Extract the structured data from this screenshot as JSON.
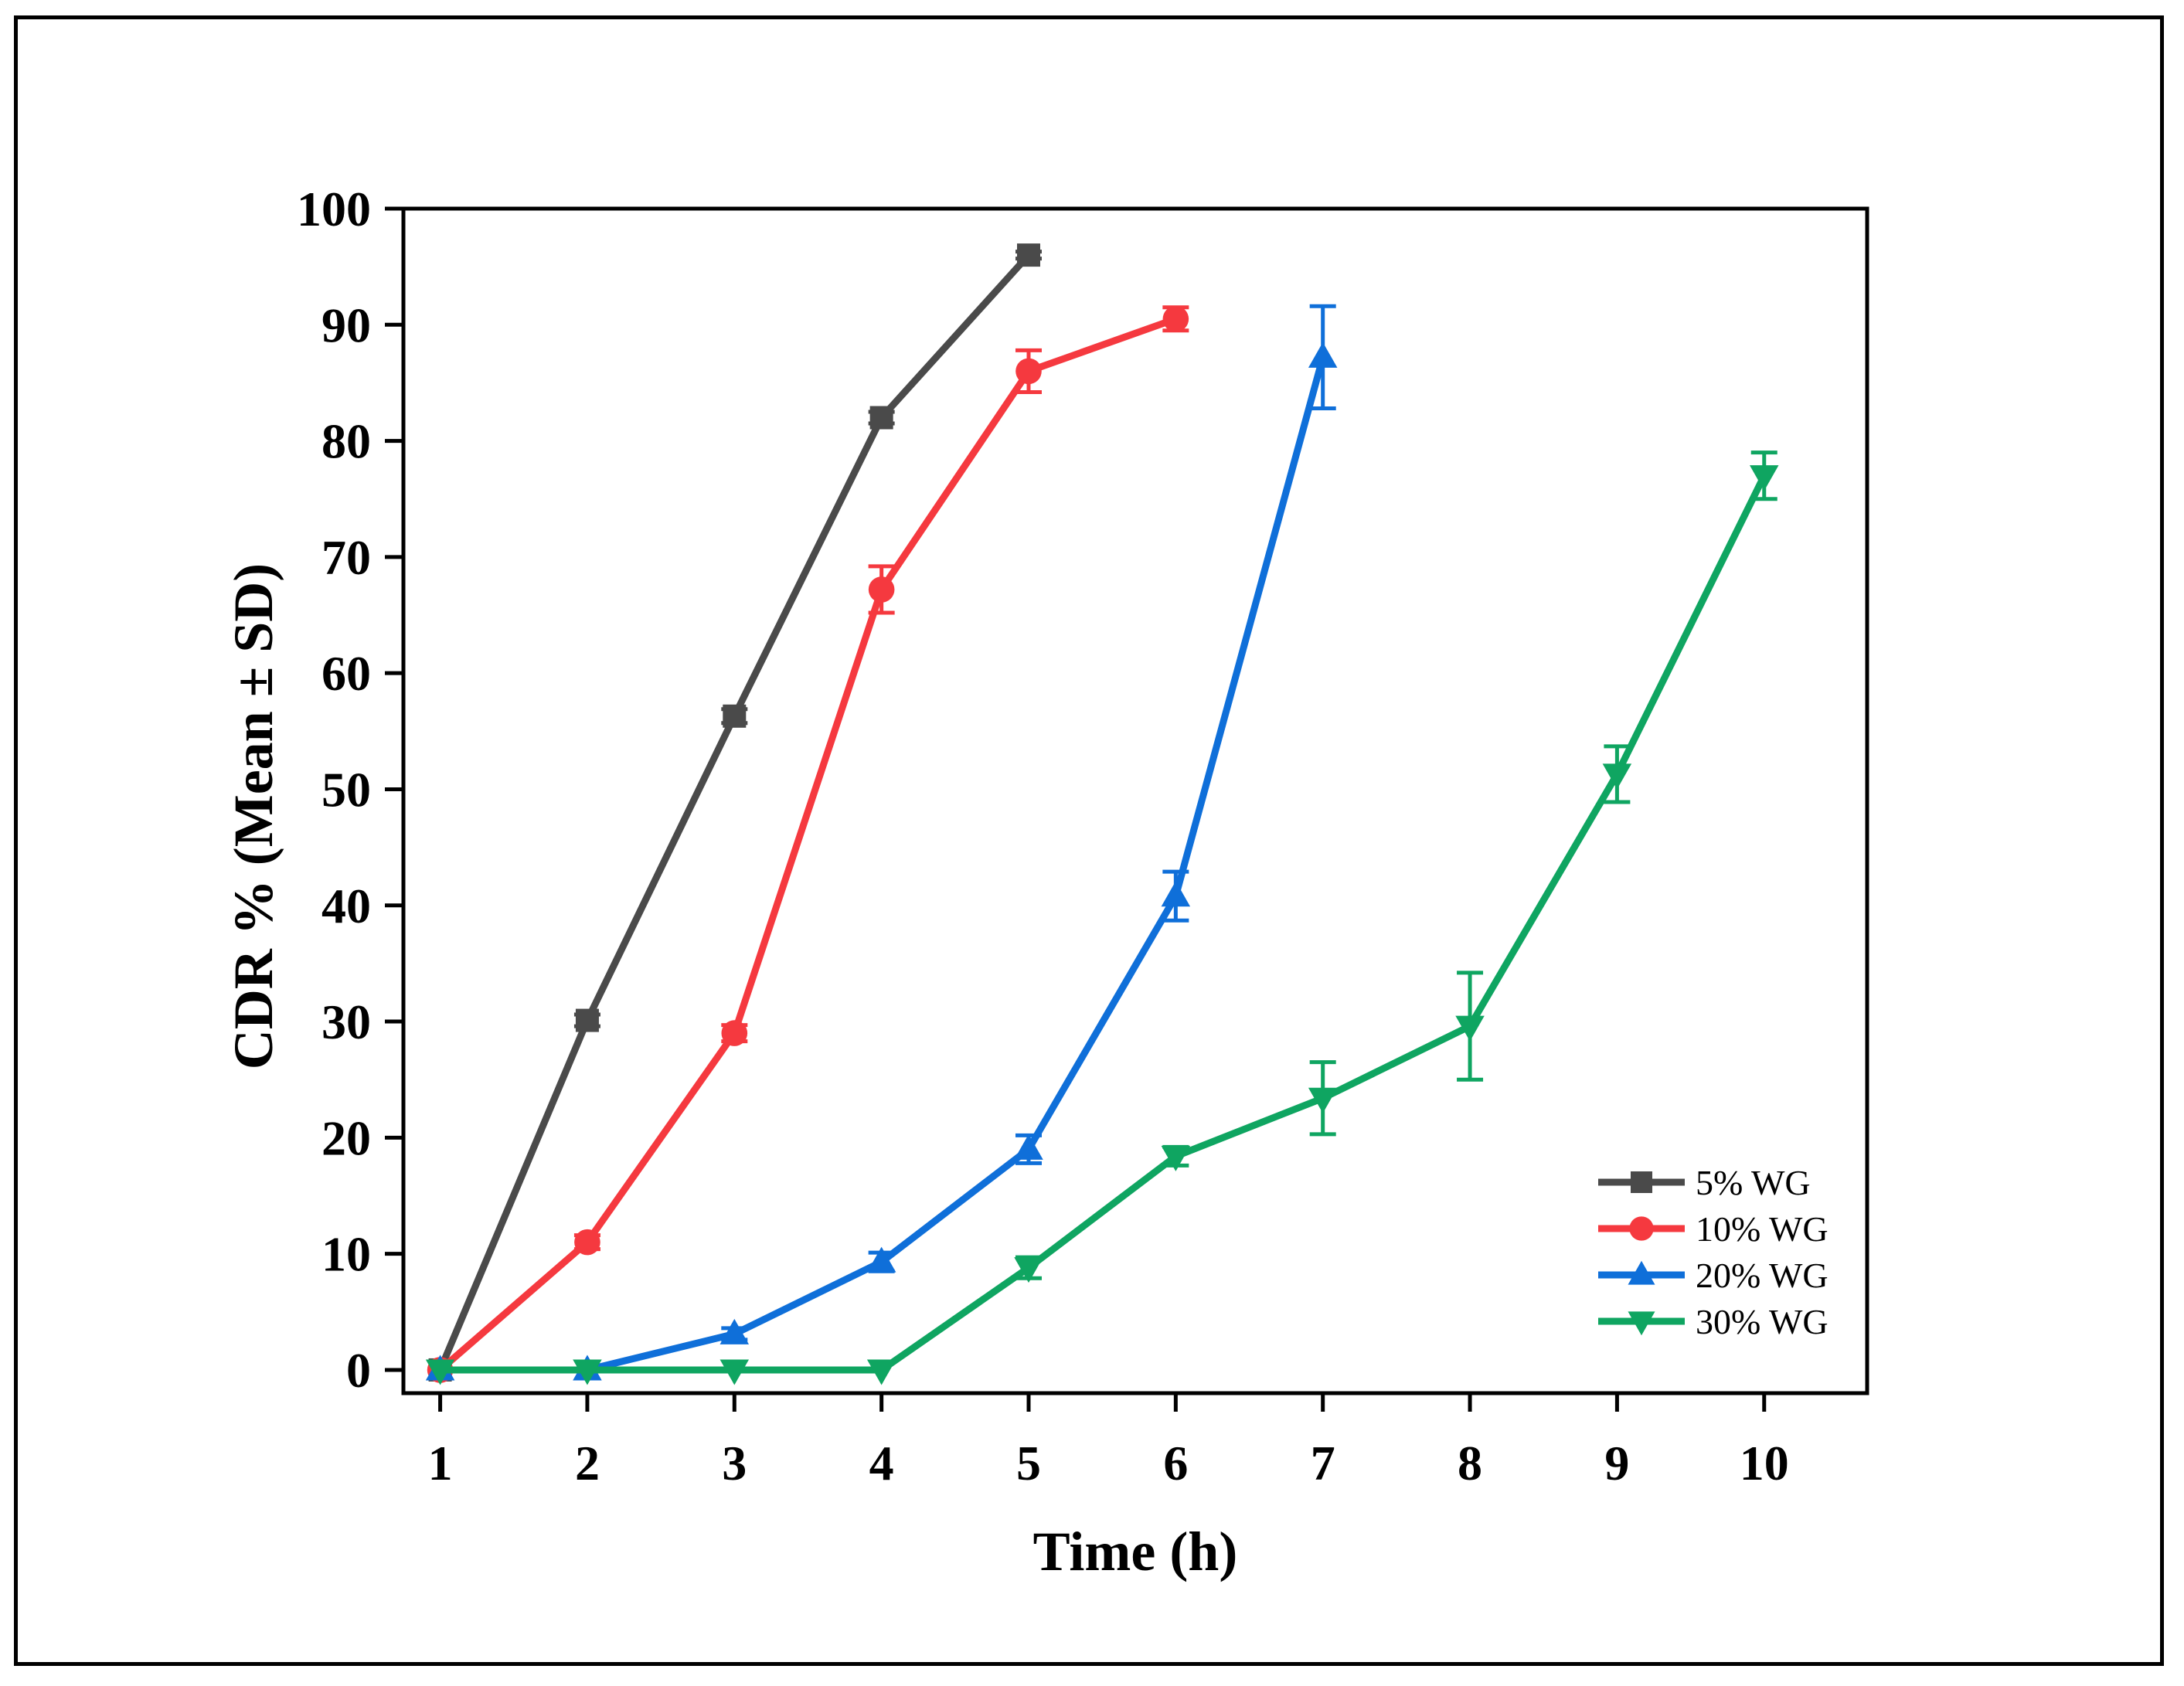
{
  "chart_data": {
    "type": "line",
    "title": "",
    "xlabel": "Time (h)",
    "ylabel": "CDR % (Mean ± SD)",
    "xlim": [
      0.75,
      10.7
    ],
    "ylim": [
      -2,
      100
    ],
    "xticks": [
      1,
      2,
      3,
      4,
      5,
      6,
      7,
      8,
      9,
      10
    ],
    "yticks": [
      0,
      10,
      20,
      30,
      40,
      50,
      60,
      70,
      80,
      90,
      100
    ],
    "legend_position": "bottom-right",
    "series": [
      {
        "name": "5% WG",
        "color": "#4a4a4a",
        "marker": "square",
        "x": [
          1,
          2,
          3,
          4,
          5
        ],
        "y": [
          0,
          30.1,
          56.3,
          82,
          96
        ],
        "sd": [
          0,
          0.5,
          0.6,
          0.5,
          0.3
        ]
      },
      {
        "name": "10% WG",
        "color": "#f5393f",
        "marker": "circle",
        "x": [
          1,
          2,
          3,
          4,
          5,
          6
        ],
        "y": [
          0,
          11,
          29,
          67.2,
          86,
          90.5
        ],
        "sd": [
          0,
          0.6,
          0.7,
          2,
          1.8,
          1
        ]
      },
      {
        "name": "20% WG",
        "color": "#0f6fd9",
        "marker": "triangle-up",
        "x": [
          1,
          2,
          3,
          4,
          5,
          6,
          7
        ],
        "y": [
          0,
          0,
          3.1,
          9.3,
          19,
          40.8,
          87.2
        ],
        "sd": [
          0,
          0,
          0.5,
          0.8,
          1.2,
          2.1,
          4.4
        ]
      },
      {
        "name": "30% WG",
        "color": "#0fa561",
        "marker": "triangle-down",
        "x": [
          1,
          2,
          3,
          4,
          5,
          6,
          7,
          8,
          9,
          10
        ],
        "y": [
          0,
          0,
          0,
          0,
          8.8,
          18.4,
          23.4,
          29.6,
          51.3,
          77
        ],
        "sd": [
          0,
          0,
          0,
          0,
          0.9,
          0.8,
          3.1,
          4.6,
          2.4,
          2
        ]
      }
    ]
  }
}
